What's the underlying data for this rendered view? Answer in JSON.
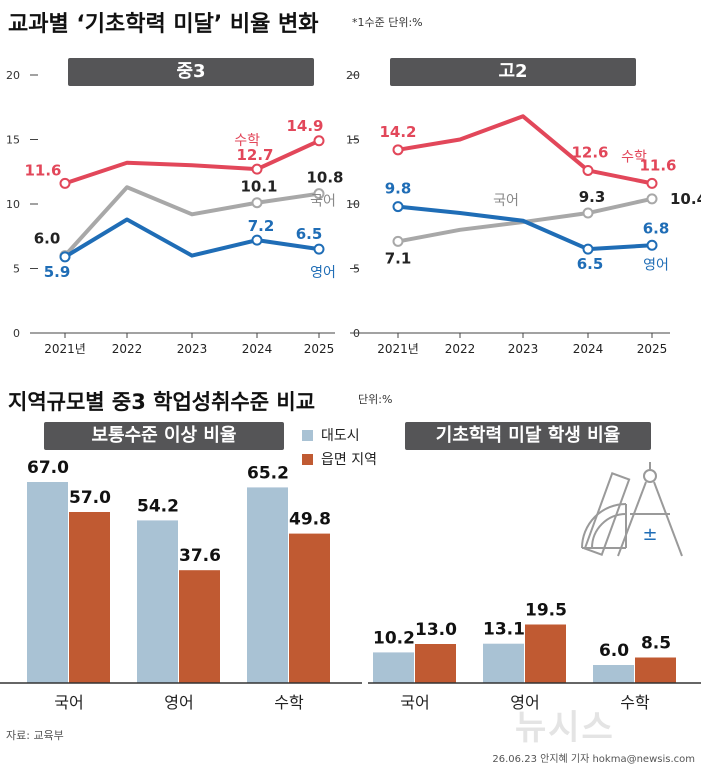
{
  "header": {
    "title": "교과별 ‘기초학력 미달’ 비율 변화",
    "unit": "*1수준 단위:%"
  },
  "section2": {
    "title": "지역규모별 중3 학업성취수준 비교",
    "unit": "단위:%"
  },
  "colors": {
    "math": "#e2475a",
    "korean": "#a8a8a8",
    "english": "#1f6db6",
    "city": "#a9c2d4",
    "rural": "#c05a32"
  },
  "chart_data": [
    {
      "type": "line",
      "title": "중3",
      "categories": [
        "2021년",
        "2022",
        "2023",
        "2024",
        "2025"
      ],
      "ylim": [
        0,
        20
      ],
      "yticks": [
        "0",
        "5",
        "10",
        "15",
        "20"
      ],
      "series": [
        {
          "name": "수학",
          "values": [
            11.6,
            13.2,
            13.0,
            12.7,
            14.9
          ],
          "labels": [
            "11.6",
            "",
            "",
            "12.7",
            "14.9"
          ]
        },
        {
          "name": "국어",
          "values": [
            6.0,
            11.3,
            9.2,
            10.1,
            10.8
          ],
          "labels": [
            "6.0",
            "",
            "",
            "10.1",
            "10.8"
          ]
        },
        {
          "name": "영어",
          "values": [
            5.9,
            8.8,
            6.0,
            7.2,
            6.5
          ],
          "labels": [
            "5.9",
            "",
            "",
            "7.2",
            "6.5"
          ]
        }
      ]
    },
    {
      "type": "line",
      "title": "고2",
      "categories": [
        "2021년",
        "2022",
        "2023",
        "2024",
        "2025"
      ],
      "ylim": [
        0,
        20
      ],
      "yticks": [
        "0",
        "5",
        "10",
        "15",
        "20"
      ],
      "series": [
        {
          "name": "수학",
          "values": [
            14.2,
            15.0,
            16.8,
            12.6,
            11.6
          ],
          "labels": [
            "14.2",
            "",
            "",
            "12.6",
            "11.6"
          ]
        },
        {
          "name": "국어",
          "values": [
            7.1,
            8.0,
            8.6,
            9.3,
            10.4
          ],
          "labels": [
            "7.1",
            "",
            "",
            "9.3",
            "10.4"
          ]
        },
        {
          "name": "영어",
          "values": [
            9.8,
            9.3,
            8.7,
            6.5,
            6.8
          ],
          "labels": [
            "9.8",
            "",
            "",
            "6.5",
            "6.8"
          ]
        }
      ]
    },
    {
      "type": "bar",
      "title": "보통수준 이상 비율",
      "categories": [
        "국어",
        "영어",
        "수학"
      ],
      "series": [
        {
          "name": "대도시",
          "values": [
            67.0,
            54.2,
            65.2
          ],
          "labels": [
            "67.0",
            "54.2",
            "65.2"
          ]
        },
        {
          "name": "읍면 지역",
          "values": [
            57.0,
            37.6,
            49.8
          ],
          "labels": [
            "57.0",
            "37.6",
            "49.8"
          ]
        }
      ]
    },
    {
      "type": "bar",
      "title": "기초학력 미달 학생 비율",
      "categories": [
        "국어",
        "영어",
        "수학"
      ],
      "series": [
        {
          "name": "대도시",
          "values": [
            10.2,
            13.1,
            6.0
          ],
          "labels": [
            "10.2",
            "13.1",
            "6.0"
          ]
        },
        {
          "name": "읍면 지역",
          "values": [
            13.0,
            19.5,
            8.5
          ],
          "labels": [
            "13.0",
            "19.5",
            "8.5"
          ]
        }
      ]
    }
  ],
  "legend": {
    "city": "대도시",
    "rural": "읍면 지역"
  },
  "footer": {
    "source": "자료: 교육부",
    "credit": "26.06.23 안지혜 기자 hokma@newsis.com",
    "watermark": "뉴시스"
  },
  "icons": [
    "protractor-compass-icon"
  ]
}
